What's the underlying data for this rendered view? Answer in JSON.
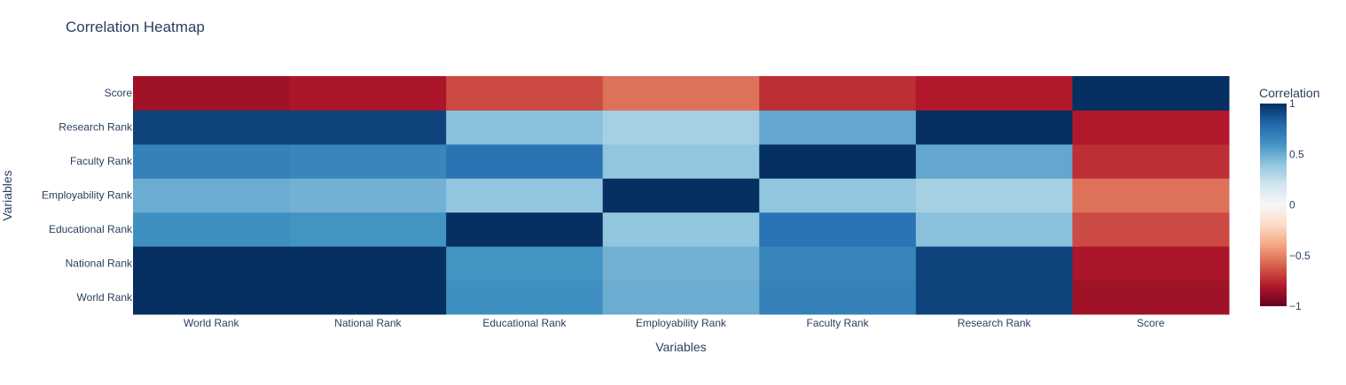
{
  "chart_data": {
    "type": "heatmap",
    "title": "Correlation Heatmap",
    "xlabel": "Variables",
    "ylabel": "Variables",
    "x_categories": [
      "World Rank",
      "National Rank",
      "Educational Rank",
      "Employability Rank",
      "Faculty Rank",
      "Research Rank",
      "Score"
    ],
    "y_categories": [
      "World Rank",
      "National Rank",
      "Educational Rank",
      "Employability Rank",
      "Faculty Rank",
      "Research Rank",
      "Score"
    ],
    "z": [
      [
        1.0,
        1.0,
        0.62,
        0.5,
        0.68,
        0.93,
        -0.85
      ],
      [
        1.0,
        1.0,
        0.6,
        0.48,
        0.66,
        0.93,
        -0.82
      ],
      [
        0.62,
        0.6,
        1.0,
        0.4,
        0.74,
        0.42,
        -0.66
      ],
      [
        0.5,
        0.48,
        0.4,
        1.0,
        0.4,
        0.34,
        -0.55
      ],
      [
        0.68,
        0.66,
        0.74,
        0.4,
        1.0,
        0.52,
        -0.74
      ],
      [
        0.93,
        0.93,
        0.42,
        0.34,
        0.52,
        1.0,
        -0.8
      ],
      [
        -0.85,
        -0.82,
        -0.66,
        -0.55,
        -0.74,
        -0.8,
        1.0
      ]
    ],
    "zlim": [
      -1,
      1
    ],
    "colorscale": "RdBu",
    "colorbar": {
      "title": "Correlation",
      "ticks": [
        1,
        0.5,
        0,
        -0.5,
        -1
      ],
      "tick_labels": [
        "1",
        "0.5",
        "0",
        "−0.5",
        "−1"
      ]
    },
    "legend": "colorbar-right",
    "grid": false
  }
}
